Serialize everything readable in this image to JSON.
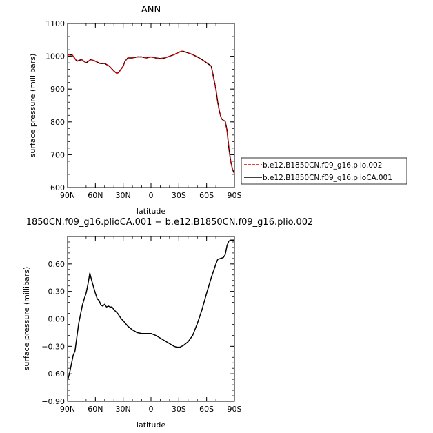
{
  "chart_data": [
    {
      "type": "line",
      "title": "ANN",
      "xlabel": "latitude",
      "ylabel": "surface pressure (millibars)",
      "xlim": [
        90,
        -90
      ],
      "ylim": [
        600,
        1100
      ],
      "xticks": [
        90,
        60,
        30,
        0,
        -30,
        -60,
        -90
      ],
      "xtick_labels": [
        "90N",
        "60N",
        "30N",
        "0",
        "30S",
        "60S",
        "90S"
      ],
      "yticks": [
        600,
        700,
        800,
        900,
        1000,
        1100
      ],
      "ytick_labels": [
        "600",
        "700",
        "800",
        "900",
        "1000",
        "1100"
      ],
      "legend": "right",
      "x": [
        90,
        85,
        80,
        75,
        70,
        65,
        60,
        55,
        50,
        45,
        40,
        37,
        35,
        30,
        28,
        25,
        20,
        15,
        10,
        5,
        0,
        -5,
        -10,
        -15,
        -20,
        -25,
        -30,
        -33,
        -35,
        -40,
        -45,
        -50,
        -55,
        -60,
        -65,
        -70,
        -72,
        -74,
        -76,
        -78,
        -80,
        -82,
        -84,
        -86,
        -88,
        -90
      ],
      "series": [
        {
          "name": "b.e12.B1850CN.f09_g16.plio.002",
          "color": "#dd0000",
          "dash": true,
          "values": [
            1004,
            1004,
            985,
            990,
            980,
            990,
            985,
            978,
            978,
            970,
            955,
            948,
            950,
            970,
            985,
            995,
            995,
            998,
            998,
            995,
            998,
            995,
            993,
            995,
            1000,
            1005,
            1012,
            1015,
            1015,
            1010,
            1005,
            998,
            990,
            980,
            970,
            900,
            860,
            830,
            810,
            805,
            802,
            775,
            720,
            680,
            655,
            642
          ]
        },
        {
          "name": "b.e12.B1850CN.f09_g16.plioCA.001",
          "color": "#000000",
          "dash": false,
          "values": [
            1004,
            1004,
            985,
            990,
            980,
            990,
            985,
            978,
            978,
            970,
            955,
            948,
            950,
            970,
            985,
            995,
            995,
            998,
            998,
            995,
            998,
            995,
            993,
            995,
            1000,
            1005,
            1012,
            1015,
            1015,
            1010,
            1005,
            998,
            990,
            980,
            970,
            900,
            860,
            830,
            810,
            805,
            802,
            775,
            720,
            680,
            655,
            642
          ]
        }
      ]
    },
    {
      "type": "line",
      "title": "1850CN.f09_g16.plioCA.001 − b.e12.B1850CN.f09_g16.plio.002",
      "xlabel": "latitude",
      "ylabel": "surface pressure (millibars)",
      "xlim": [
        90,
        -90
      ],
      "ylim": [
        -0.9,
        0.9
      ],
      "xticks": [
        90,
        60,
        30,
        0,
        -30,
        -60,
        -90
      ],
      "xtick_labels": [
        "90N",
        "60N",
        "30N",
        "0",
        "30S",
        "60S",
        "90S"
      ],
      "yticks": [
        -0.9,
        -0.6,
        -0.3,
        0.0,
        0.3,
        0.6
      ],
      "ytick_labels": [
        "−0.90",
        "−0.60",
        "−0.30",
        "0.00",
        "0.30",
        "0.60"
      ],
      "x": [
        90,
        88,
        86,
        84,
        82,
        80,
        78,
        76,
        74,
        72,
        70,
        68,
        66,
        64,
        62,
        60,
        58,
        56,
        54,
        52,
        50,
        48,
        46,
        44,
        42,
        40,
        38,
        36,
        34,
        32,
        30,
        25,
        20,
        15,
        10,
        5,
        0,
        -5,
        -10,
        -15,
        -20,
        -25,
        -28,
        -31,
        -35,
        -40,
        -45,
        -50,
        -55,
        -60,
        -65,
        -70,
        -72,
        -75,
        -78,
        -80,
        -82,
        -84,
        -86,
        -88,
        -90
      ],
      "series": [
        {
          "color": "#000000",
          "values": [
            -0.67,
            -0.6,
            -0.5,
            -0.4,
            -0.35,
            -0.2,
            -0.05,
            0.05,
            0.15,
            0.22,
            0.28,
            0.38,
            0.5,
            0.42,
            0.35,
            0.28,
            0.22,
            0.2,
            0.15,
            0.14,
            0.16,
            0.13,
            0.14,
            0.13,
            0.13,
            0.1,
            0.08,
            0.06,
            0.03,
            0.0,
            -0.02,
            -0.08,
            -0.12,
            -0.15,
            -0.16,
            -0.16,
            -0.16,
            -0.18,
            -0.21,
            -0.24,
            -0.27,
            -0.3,
            -0.31,
            -0.31,
            -0.29,
            -0.25,
            -0.18,
            -0.05,
            0.1,
            0.28,
            0.45,
            0.6,
            0.65,
            0.66,
            0.67,
            0.7,
            0.8,
            0.85,
            0.86,
            0.86,
            0.86
          ]
        }
      ]
    }
  ]
}
